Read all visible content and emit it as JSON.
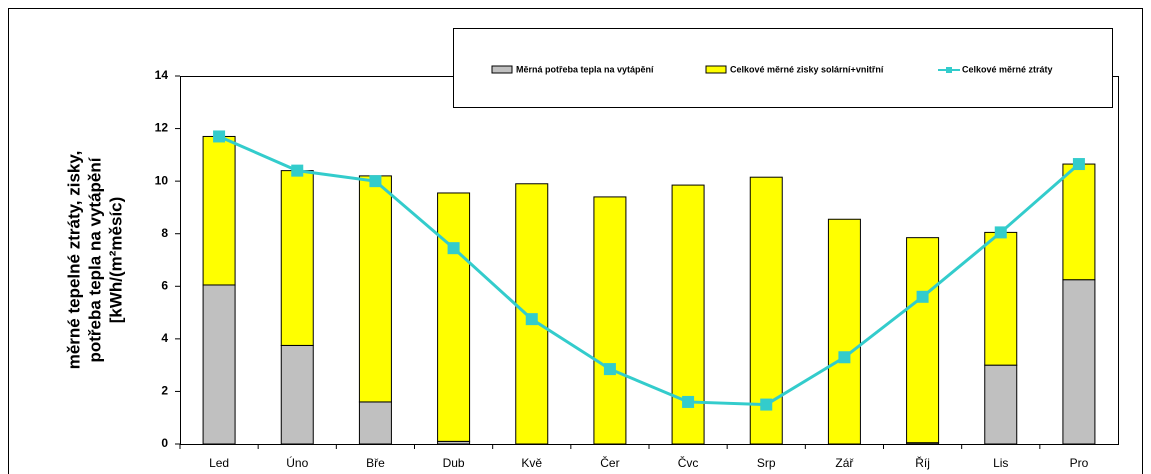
{
  "chart_data": {
    "type": "bar",
    "stacked": true,
    "ylabel": [
      "měrné tepelné ztráty, zisky,",
      "potřeba tepla na vytápění",
      "[kWh/(m²měsíc)"
    ],
    "categories": [
      "Led",
      "Úno",
      "Bře",
      "Dub",
      "Kvě",
      "Čer",
      "Čvc",
      "Srp",
      "Zář",
      "Říj",
      "Lis",
      "Pro"
    ],
    "series": [
      {
        "name": "Měrná potřeba tepla na vytápění",
        "type": "bar",
        "color": "#c0c0c0",
        "values": [
          6.05,
          3.75,
          1.6,
          0.1,
          0,
          0,
          0,
          0,
          0,
          0.05,
          3.0,
          6.25
        ]
      },
      {
        "name": "Celkové měrné zisky solární+vnitřní",
        "type": "bar",
        "color": "#ffff00",
        "values": [
          5.65,
          6.65,
          8.6,
          9.45,
          9.9,
          9.4,
          9.85,
          10.15,
          8.55,
          7.8,
          5.05,
          4.4
        ]
      },
      {
        "name": "Celkové měrné ztráty",
        "type": "line",
        "color": "#33cccc",
        "values": [
          11.7,
          10.4,
          10.0,
          7.45,
          4.75,
          2.85,
          1.6,
          1.5,
          3.3,
          5.6,
          8.05,
          10.65
        ]
      }
    ],
    "ylim": [
      0,
      14
    ],
    "yticks": [
      0,
      2,
      4,
      6,
      8,
      10,
      12,
      14
    ],
    "grid": false
  }
}
